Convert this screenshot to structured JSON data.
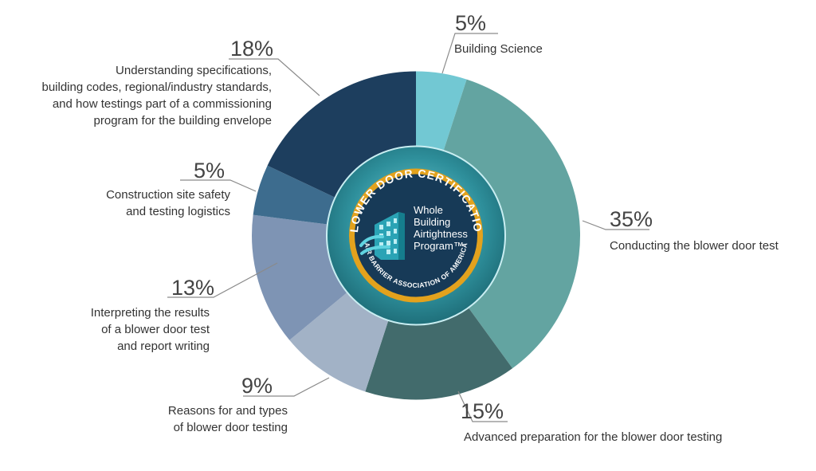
{
  "chart_data": {
    "type": "pie",
    "variant": "donut",
    "categories": [
      "Building Science",
      "Conducting the blower door test",
      "Advanced preparation for the blower door testing",
      "Reasons for and types of blower door testing",
      "Interpreting the results of a blower door test and report writing",
      "Construction site safety and testing logistics",
      "Understanding specifications, building codes, regional/industry standards, and how testings part of a commissioning program for the building envelope"
    ],
    "values": [
      5,
      35,
      15,
      9,
      13,
      5,
      18
    ],
    "value_labels": [
      "5%",
      "35%",
      "15%",
      "9%",
      "13%",
      "5%",
      "18%"
    ],
    "colors": [
      "#72c8d3",
      "#63a4a1",
      "#426b6c",
      "#a2b2c6",
      "#7e94b4",
      "#3d6c8e",
      "#1d3e5e"
    ],
    "label_lines": [
      [
        "Building Science"
      ],
      [
        "Conducting the blower door test"
      ],
      [
        "Advanced preparation for the blower door testing"
      ],
      [
        "Reasons for and types",
        "of blower door testing"
      ],
      [
        "Interpreting the results",
        "of a blower door test",
        "and report writing"
      ],
      [
        "Construction site safety",
        "and testing logistics"
      ],
      [
        "Understanding specifications,",
        "building codes, regional/industry standards,",
        "and how testings part of a commissioning",
        "program for the building envelope"
      ]
    ]
  },
  "badge": {
    "arc_top": "BLOWER DOOR CERTIFICATION",
    "arc_bottom": "AIR BARRIER ASSOCIATION OF AMERICA",
    "program_lines": [
      "Whole",
      "Building",
      "Airtightness",
      "Program™"
    ],
    "colors": {
      "ring": "#2e8f9b",
      "gold": "#e3a21d",
      "navy": "#173a57",
      "cyan": "#4fc3d1"
    }
  }
}
